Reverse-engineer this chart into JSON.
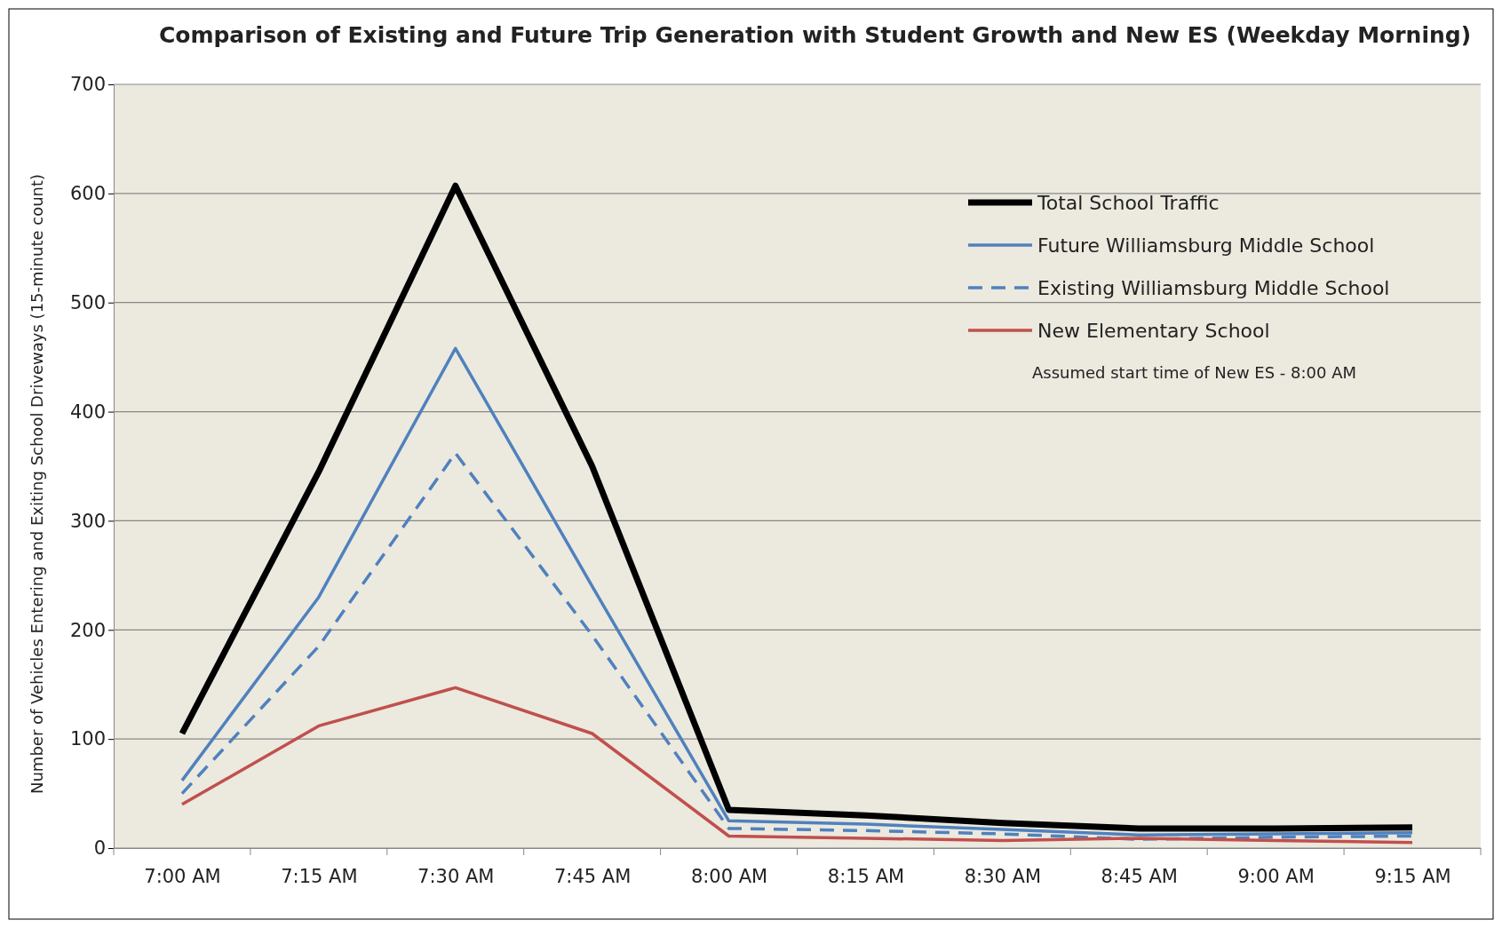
{
  "chart_data": {
    "type": "line",
    "title": "Comparison of Existing and Future Trip Generation with Student Growth and New ES (Weekday Morning)",
    "ylabel": "Number of Vehicles Entering and Exiting School Driveways (15-minute count)",
    "categories": [
      "7:00 AM",
      "7:15 AM",
      "7:30 AM",
      "7:45 AM",
      "8:00 AM",
      "8:15 AM",
      "8:30 AM",
      "8:45 AM",
      "9:00 AM",
      "9:15 AM"
    ],
    "ylim": [
      0,
      700
    ],
    "yticks": [
      0,
      100,
      200,
      300,
      400,
      500,
      600,
      700
    ],
    "grid": "y",
    "legend": "top right",
    "marker": "none",
    "series": [
      {
        "name": "Total School Traffic",
        "color": "#000000",
        "line_style": "solid",
        "values": [
          105,
          345,
          607,
          350,
          35,
          30,
          23,
          18,
          18,
          19
        ]
      },
      {
        "name": "Future Williamsburg Middle School",
        "color": "#4f81bd",
        "line_style": "solid",
        "values": [
          62,
          230,
          458,
          240,
          25,
          22,
          17,
          12,
          13,
          14
        ]
      },
      {
        "name": "Existing Williamsburg Middle School",
        "color": "#4f81bd",
        "line_style": "dashed",
        "values": [
          50,
          185,
          362,
          195,
          18,
          16,
          13,
          8,
          10,
          11
        ]
      },
      {
        "name": "New Elementary School",
        "color": "#c0504d",
        "line_style": "solid",
        "values": [
          40,
          112,
          147,
          105,
          11,
          9,
          7,
          9,
          7,
          5
        ]
      }
    ],
    "annotations": [
      "Assumed start time of New ES - 8:00 AM"
    ]
  }
}
